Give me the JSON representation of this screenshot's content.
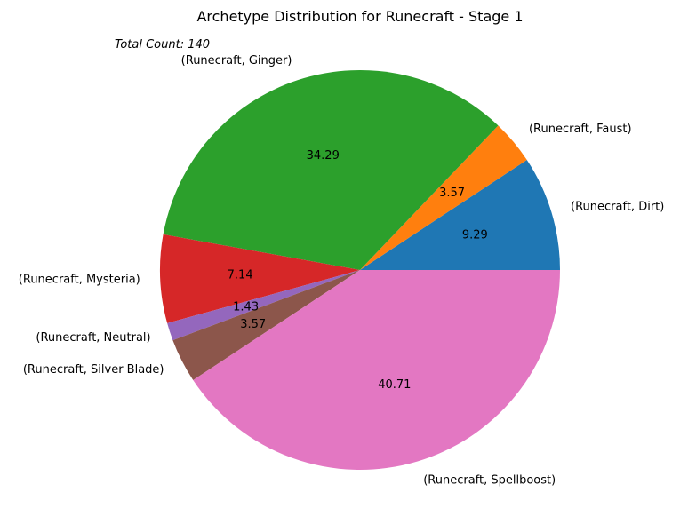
{
  "chart_data": {
    "type": "pie",
    "title": "Archetype Distribution for Runecraft - Stage 1",
    "subtitle": "Total Count: 140",
    "categories": [
      "(Runecraft, Dirt)",
      "(Runecraft, Faust)",
      "(Runecraft, Ginger)",
      "(Runecraft, Mysteria)",
      "(Runecraft, Neutral)",
      "(Runecraft, Silver Blade)",
      "(Runecraft, Spellboost)"
    ],
    "values": [
      9.29,
      3.57,
      34.29,
      7.14,
      1.43,
      3.57,
      40.71
    ],
    "value_labels": [
      "9.29",
      "3.57",
      "34.29",
      "7.14",
      "1.43",
      "3.57",
      "40.71"
    ],
    "colors": [
      "#1f77b4",
      "#ff7f0e",
      "#2ca02c",
      "#d62728",
      "#9467bd",
      "#8c564b",
      "#e377c2"
    ],
    "start_angle": 0,
    "direction": "counterclockwise"
  }
}
